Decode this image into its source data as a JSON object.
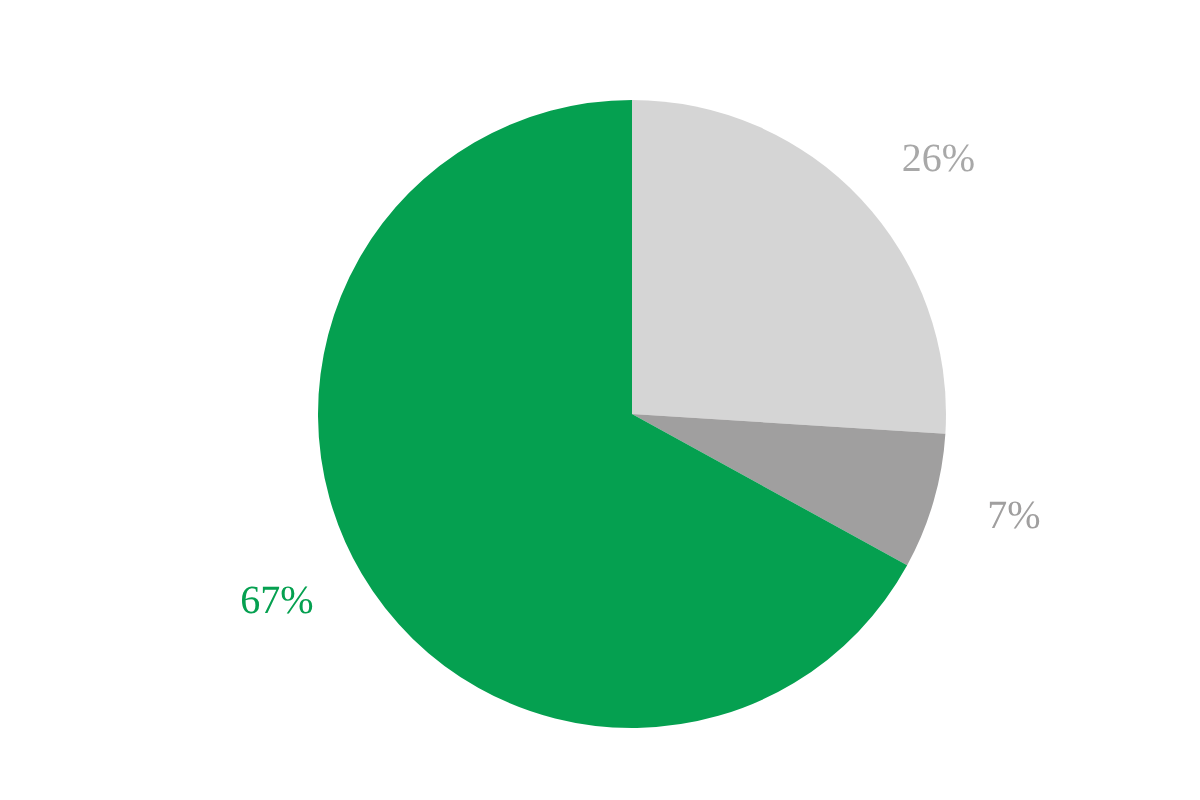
{
  "chart_data": {
    "type": "pie",
    "categories": [
      null,
      null,
      null
    ],
    "values": [
      26,
      7,
      67
    ],
    "colors": [
      "#d5d5d5",
      "#a09f9f",
      "#05a050"
    ],
    "value_labels": [
      "26%",
      "7%",
      "67%"
    ]
  }
}
